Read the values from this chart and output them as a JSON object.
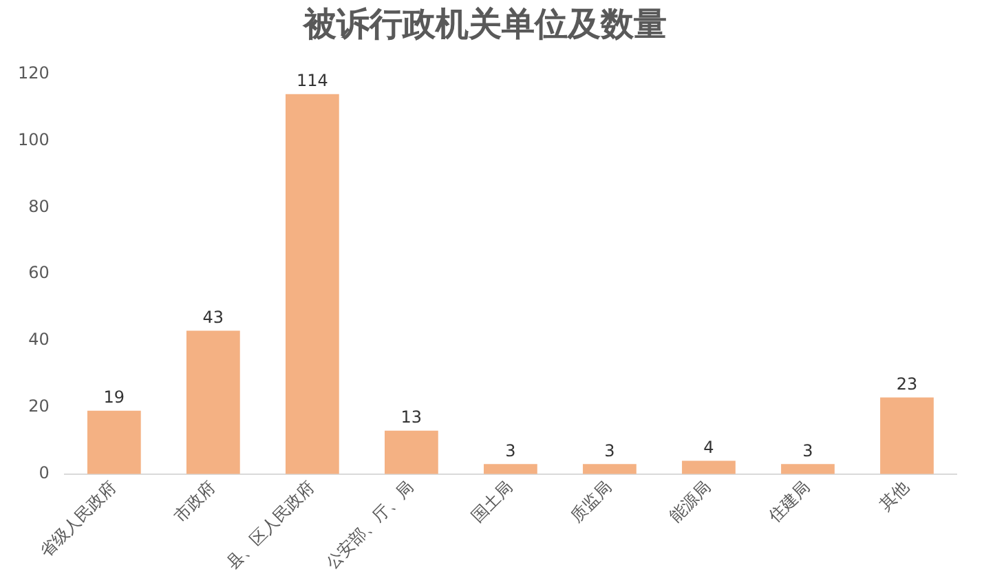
{
  "chart_data": {
    "type": "bar",
    "title": "被诉行政机关单位及数量",
    "categories": [
      "省级人民政府",
      "市政府",
      "县、区人民政府",
      "公安部、厅、局",
      "国土局",
      "质监局",
      "能源局",
      "住建局",
      "其他"
    ],
    "values": [
      19,
      43,
      114,
      13,
      3,
      3,
      4,
      3,
      23
    ],
    "color": "#f4b183",
    "ylim": [
      0,
      120
    ],
    "yticks": [
      0,
      20,
      40,
      60,
      80,
      100,
      120
    ],
    "grid": false,
    "legend": false,
    "data_labels": true
  }
}
